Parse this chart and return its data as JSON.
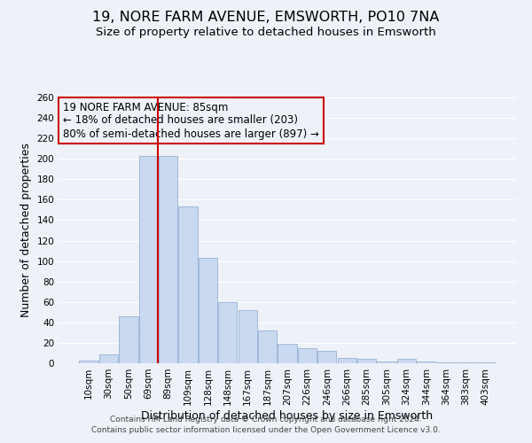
{
  "title": "19, NORE FARM AVENUE, EMSWORTH, PO10 7NA",
  "subtitle": "Size of property relative to detached houses in Emsworth",
  "xlabel": "Distribution of detached houses by size in Emsworth",
  "ylabel": "Number of detached properties",
  "categories": [
    "10sqm",
    "30sqm",
    "50sqm",
    "69sqm",
    "89sqm",
    "109sqm",
    "128sqm",
    "148sqm",
    "167sqm",
    "187sqm",
    "207sqm",
    "226sqm",
    "246sqm",
    "266sqm",
    "285sqm",
    "305sqm",
    "324sqm",
    "344sqm",
    "364sqm",
    "383sqm",
    "403sqm"
  ],
  "values": [
    3,
    9,
    46,
    203,
    203,
    153,
    103,
    60,
    52,
    32,
    19,
    15,
    12,
    5,
    4,
    2,
    4,
    2,
    1,
    1,
    1
  ],
  "bar_color": "#c9d9f0",
  "bar_edge_color": "#a0b8d8",
  "highlight_line_index": 4,
  "highlight_line_color": "#cc0000",
  "annotation_line1": "19 NORE FARM AVENUE: 85sqm",
  "annotation_line2": "← 18% of detached houses are smaller (203)",
  "annotation_line3": "80% of semi-detached houses are larger (897) →",
  "annotation_box_edge_color": "#cc0000",
  "footer_line1": "Contains HM Land Registry data © Crown copyright and database right 2024.",
  "footer_line2": "Contains public sector information licensed under the Open Government Licence v3.0.",
  "ylim": [
    0,
    260
  ],
  "yticks": [
    0,
    20,
    40,
    60,
    80,
    100,
    120,
    140,
    160,
    180,
    200,
    220,
    240,
    260
  ],
  "background_color": "#eef1f8",
  "grid_color": "#ffffff",
  "title_fontsize": 11.5,
  "subtitle_fontsize": 9.5,
  "axis_label_fontsize": 9,
  "tick_fontsize": 7.5,
  "annotation_fontsize": 8.5,
  "footer_fontsize": 6.5
}
